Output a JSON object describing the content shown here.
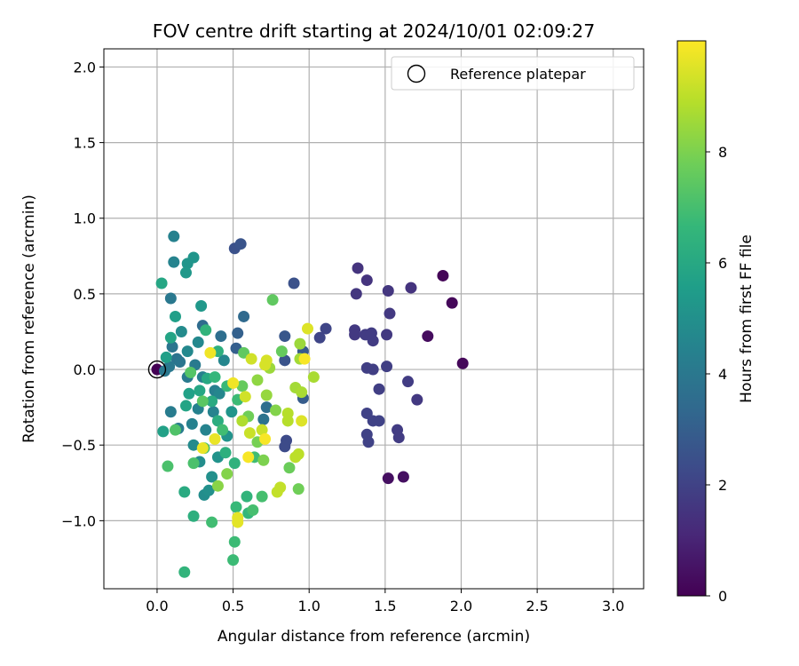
{
  "chart_data": {
    "type": "scatter",
    "title": "FOV centre drift starting at 2024/10/01 02:09:27",
    "xlabel": "Angular distance from reference (arcmin)",
    "ylabel": "Rotation from reference (arcmin)",
    "xlim": [
      -0.35,
      3.2
    ],
    "ylim": [
      -1.45,
      2.12
    ],
    "x_ticks": [
      0.0,
      0.5,
      1.0,
      1.5,
      2.0,
      2.5,
      3.0
    ],
    "x_tick_labels": [
      "0.0",
      "0.5",
      "1.0",
      "1.5",
      "2.0",
      "2.5",
      "3.0"
    ],
    "y_ticks": [
      -1.0,
      -0.5,
      0.0,
      0.5,
      1.0,
      1.5,
      2.0
    ],
    "y_tick_labels": [
      "−1.0",
      "−0.5",
      "0.0",
      "0.5",
      "1.0",
      "1.5",
      "2.0"
    ],
    "grid": true,
    "legend": {
      "placement": "top-right",
      "label": "Reference platepar"
    },
    "reference_point": {
      "x": 0.0,
      "y": 0.0
    },
    "colorbar": {
      "label": "Hours from first FF file",
      "colormap": "viridis",
      "range": [
        0,
        10.0
      ],
      "ticks": [
        0,
        2,
        4,
        6,
        8
      ],
      "tick_labels": [
        "0",
        "2",
        "4",
        "6",
        "8"
      ]
    },
    "series": [
      {
        "colormap_value_key": "h",
        "points": [
          {
            "x": 0.0,
            "y": 0.0,
            "h": 0.0
          },
          {
            "x": 1.88,
            "y": 0.62,
            "h": 0.1
          },
          {
            "x": 1.94,
            "y": 0.44,
            "h": 0.2
          },
          {
            "x": 2.01,
            "y": 0.04,
            "h": 0.2
          },
          {
            "x": 1.78,
            "y": 0.22,
            "h": 0.3
          },
          {
            "x": 1.52,
            "y": -0.72,
            "h": 0.4
          },
          {
            "x": 1.62,
            "y": -0.71,
            "h": 0.4
          },
          {
            "x": 1.32,
            "y": 0.67,
            "h": 1.5
          },
          {
            "x": 1.38,
            "y": 0.59,
            "h": 1.5
          },
          {
            "x": 1.31,
            "y": 0.5,
            "h": 1.6
          },
          {
            "x": 1.52,
            "y": 0.52,
            "h": 1.6
          },
          {
            "x": 1.67,
            "y": 0.54,
            "h": 1.5
          },
          {
            "x": 1.53,
            "y": 0.37,
            "h": 1.7
          },
          {
            "x": 1.3,
            "y": 0.26,
            "h": 1.7
          },
          {
            "x": 1.3,
            "y": 0.23,
            "h": 1.7
          },
          {
            "x": 1.37,
            "y": 0.23,
            "h": 1.8
          },
          {
            "x": 1.41,
            "y": 0.24,
            "h": 1.8
          },
          {
            "x": 1.42,
            "y": 0.19,
            "h": 1.8
          },
          {
            "x": 1.51,
            "y": 0.23,
            "h": 1.7
          },
          {
            "x": 1.38,
            "y": 0.01,
            "h": 1.9
          },
          {
            "x": 1.42,
            "y": 0.0,
            "h": 1.9
          },
          {
            "x": 1.51,
            "y": 0.02,
            "h": 1.9
          },
          {
            "x": 1.65,
            "y": -0.08,
            "h": 1.8
          },
          {
            "x": 1.46,
            "y": -0.13,
            "h": 1.9
          },
          {
            "x": 1.71,
            "y": -0.2,
            "h": 1.7
          },
          {
            "x": 1.38,
            "y": -0.29,
            "h": 2.0
          },
          {
            "x": 1.42,
            "y": -0.34,
            "h": 2.0
          },
          {
            "x": 1.46,
            "y": -0.34,
            "h": 2.0
          },
          {
            "x": 1.58,
            "y": -0.4,
            "h": 1.8
          },
          {
            "x": 1.59,
            "y": -0.45,
            "h": 1.8
          },
          {
            "x": 1.38,
            "y": -0.43,
            "h": 2.0
          },
          {
            "x": 1.39,
            "y": -0.48,
            "h": 2.0
          },
          {
            "x": 1.11,
            "y": 0.27,
            "h": 2.1
          },
          {
            "x": 1.07,
            "y": 0.21,
            "h": 2.1
          },
          {
            "x": 0.85,
            "y": -0.47,
            "h": 2.3
          },
          {
            "x": 0.84,
            "y": -0.51,
            "h": 2.3
          },
          {
            "x": 0.9,
            "y": 0.57,
            "h": 2.5
          },
          {
            "x": 0.51,
            "y": 0.8,
            "h": 2.5
          },
          {
            "x": 0.55,
            "y": 0.83,
            "h": 2.6
          },
          {
            "x": 0.84,
            "y": 0.22,
            "h": 2.7
          },
          {
            "x": 0.84,
            "y": 0.06,
            "h": 2.6
          },
          {
            "x": 0.96,
            "y": 0.12,
            "h": 2.8
          },
          {
            "x": 0.96,
            "y": -0.19,
            "h": 2.9
          },
          {
            "x": 0.52,
            "y": 0.14,
            "h": 3.0
          },
          {
            "x": 0.53,
            "y": 0.24,
            "h": 3.1
          },
          {
            "x": 0.57,
            "y": 0.35,
            "h": 3.4
          },
          {
            "x": 0.3,
            "y": 0.29,
            "h": 3.5
          },
          {
            "x": 0.42,
            "y": 0.22,
            "h": 3.6
          },
          {
            "x": 0.72,
            "y": -0.25,
            "h": 3.6
          },
          {
            "x": 0.7,
            "y": -0.33,
            "h": 3.8
          },
          {
            "x": 0.13,
            "y": 0.07,
            "h": 3.8
          },
          {
            "x": 0.1,
            "y": 0.15,
            "h": 3.9
          },
          {
            "x": 0.15,
            "y": 0.05,
            "h": 3.9
          },
          {
            "x": 0.08,
            "y": 0.02,
            "h": 4.0
          },
          {
            "x": 0.05,
            "y": -0.01,
            "h": 4.0
          },
          {
            "x": 0.2,
            "y": -0.05,
            "h": 4.1
          },
          {
            "x": 0.25,
            "y": 0.03,
            "h": 4.1
          },
          {
            "x": 0.09,
            "y": 0.47,
            "h": 4.0
          },
          {
            "x": 0.09,
            "y": -0.28,
            "h": 4.2
          },
          {
            "x": 0.14,
            "y": -0.39,
            "h": 4.2
          },
          {
            "x": 0.3,
            "y": -0.05,
            "h": 4.3
          },
          {
            "x": 0.38,
            "y": -0.14,
            "h": 4.3
          },
          {
            "x": 0.27,
            "y": -0.26,
            "h": 4.4
          },
          {
            "x": 0.23,
            "y": -0.36,
            "h": 4.4
          },
          {
            "x": 0.32,
            "y": -0.4,
            "h": 4.5
          },
          {
            "x": 0.37,
            "y": -0.28,
            "h": 4.5
          },
          {
            "x": 0.41,
            "y": -0.16,
            "h": 4.6
          },
          {
            "x": 0.44,
            "y": 0.06,
            "h": 4.6
          },
          {
            "x": 0.27,
            "y": 0.18,
            "h": 4.7
          },
          {
            "x": 0.2,
            "y": 0.12,
            "h": 4.7
          },
          {
            "x": 0.16,
            "y": 0.25,
            "h": 4.8
          },
          {
            "x": 0.24,
            "y": -0.5,
            "h": 4.8
          },
          {
            "x": 0.28,
            "y": -0.61,
            "h": 4.9
          },
          {
            "x": 0.31,
            "y": -0.83,
            "h": 4.9
          },
          {
            "x": 0.34,
            "y": -0.8,
            "h": 5.0
          },
          {
            "x": 0.36,
            "y": -0.71,
            "h": 5.0
          },
          {
            "x": 0.4,
            "y": -0.58,
            "h": 5.1
          },
          {
            "x": 0.46,
            "y": -0.44,
            "h": 5.1
          },
          {
            "x": 0.49,
            "y": -0.28,
            "h": 5.2
          },
          {
            "x": 0.2,
            "y": 0.7,
            "h": 5.2
          },
          {
            "x": 0.24,
            "y": 0.74,
            "h": 5.2
          },
          {
            "x": 0.19,
            "y": 0.64,
            "h": 5.3
          },
          {
            "x": 0.11,
            "y": 0.88,
            "h": 4.4
          },
          {
            "x": 0.11,
            "y": 0.71,
            "h": 4.5
          },
          {
            "x": 0.29,
            "y": 0.42,
            "h": 5.3
          },
          {
            "x": 0.03,
            "y": 0.57,
            "h": 5.9
          },
          {
            "x": 0.12,
            "y": 0.35,
            "h": 5.6
          },
          {
            "x": 0.09,
            "y": 0.21,
            "h": 5.8
          },
          {
            "x": 0.06,
            "y": 0.08,
            "h": 5.6
          },
          {
            "x": 0.04,
            "y": -0.41,
            "h": 5.7
          },
          {
            "x": 0.18,
            "y": -0.81,
            "h": 6.1
          },
          {
            "x": 0.24,
            "y": -0.97,
            "h": 6.3
          },
          {
            "x": 0.18,
            "y": -1.34,
            "h": 6.5
          },
          {
            "x": 0.21,
            "y": -0.16,
            "h": 5.7
          },
          {
            "x": 0.19,
            "y": -0.24,
            "h": 5.8
          },
          {
            "x": 0.28,
            "y": -0.14,
            "h": 5.9
          },
          {
            "x": 0.33,
            "y": -0.06,
            "h": 6.0
          },
          {
            "x": 0.36,
            "y": -0.21,
            "h": 6.1
          },
          {
            "x": 0.4,
            "y": -0.34,
            "h": 6.2
          },
          {
            "x": 0.45,
            "y": -0.55,
            "h": 6.3
          },
          {
            "x": 0.51,
            "y": -0.62,
            "h": 6.4
          },
          {
            "x": 0.59,
            "y": -0.84,
            "h": 6.5
          },
          {
            "x": 0.6,
            "y": -0.95,
            "h": 6.6
          },
          {
            "x": 0.52,
            "y": -0.91,
            "h": 6.7
          },
          {
            "x": 0.51,
            "y": -1.14,
            "h": 6.8
          },
          {
            "x": 0.5,
            "y": -1.26,
            "h": 6.8
          },
          {
            "x": 0.36,
            "y": -1.01,
            "h": 6.9
          },
          {
            "x": 0.64,
            "y": -0.58,
            "h": 6.9
          },
          {
            "x": 0.69,
            "y": -0.84,
            "h": 7.0
          },
          {
            "x": 0.63,
            "y": -0.93,
            "h": 7.0
          },
          {
            "x": 0.4,
            "y": 0.12,
            "h": 6.3
          },
          {
            "x": 0.32,
            "y": 0.26,
            "h": 6.5
          },
          {
            "x": 0.38,
            "y": -0.05,
            "h": 6.6
          },
          {
            "x": 0.46,
            "y": -0.11,
            "h": 6.7
          },
          {
            "x": 0.53,
            "y": -0.2,
            "h": 6.8
          },
          {
            "x": 0.43,
            "y": -0.4,
            "h": 6.9
          },
          {
            "x": 0.31,
            "y": -0.52,
            "h": 7.0
          },
          {
            "x": 0.24,
            "y": -0.62,
            "h": 7.1
          },
          {
            "x": 0.07,
            "y": -0.64,
            "h": 7.1
          },
          {
            "x": 0.12,
            "y": -0.4,
            "h": 7.2
          },
          {
            "x": 0.22,
            "y": -0.02,
            "h": 7.3
          },
          {
            "x": 0.3,
            "y": -0.21,
            "h": 7.4
          },
          {
            "x": 0.57,
            "y": 0.11,
            "h": 7.5
          },
          {
            "x": 0.76,
            "y": 0.46,
            "h": 7.5
          },
          {
            "x": 0.82,
            "y": 0.12,
            "h": 7.6
          },
          {
            "x": 0.87,
            "y": -0.65,
            "h": 7.7
          },
          {
            "x": 0.93,
            "y": -0.79,
            "h": 7.8
          },
          {
            "x": 0.56,
            "y": -0.11,
            "h": 7.6
          },
          {
            "x": 0.6,
            "y": -0.31,
            "h": 7.8
          },
          {
            "x": 0.66,
            "y": -0.48,
            "h": 7.9
          },
          {
            "x": 0.7,
            "y": -0.6,
            "h": 8.0
          },
          {
            "x": 0.78,
            "y": -0.27,
            "h": 8.1
          },
          {
            "x": 0.46,
            "y": -0.69,
            "h": 8.1
          },
          {
            "x": 0.4,
            "y": -0.77,
            "h": 8.2
          },
          {
            "x": 0.66,
            "y": -0.07,
            "h": 8.3
          },
          {
            "x": 0.72,
            "y": -0.17,
            "h": 8.4
          },
          {
            "x": 0.74,
            "y": 0.01,
            "h": 8.5
          },
          {
            "x": 0.91,
            "y": -0.12,
            "h": 8.6
          },
          {
            "x": 0.95,
            "y": -0.15,
            "h": 8.7
          },
          {
            "x": 0.94,
            "y": 0.07,
            "h": 8.6
          },
          {
            "x": 0.94,
            "y": 0.17,
            "h": 8.5
          },
          {
            "x": 1.03,
            "y": -0.05,
            "h": 8.7
          },
          {
            "x": 0.56,
            "y": -0.34,
            "h": 8.8
          },
          {
            "x": 0.86,
            "y": -0.34,
            "h": 8.9
          },
          {
            "x": 0.86,
            "y": -0.29,
            "h": 8.9
          },
          {
            "x": 0.93,
            "y": -0.56,
            "h": 9.0
          },
          {
            "x": 0.91,
            "y": -0.58,
            "h": 9.0
          },
          {
            "x": 0.81,
            "y": -0.78,
            "h": 9.1
          },
          {
            "x": 0.79,
            "y": -0.81,
            "h": 9.1
          },
          {
            "x": 0.69,
            "y": -0.4,
            "h": 9.2
          },
          {
            "x": 0.61,
            "y": -0.42,
            "h": 9.2
          },
          {
            "x": 0.58,
            "y": -0.18,
            "h": 9.3
          },
          {
            "x": 0.62,
            "y": 0.07,
            "h": 9.3
          },
          {
            "x": 0.71,
            "y": 0.03,
            "h": 9.4
          },
          {
            "x": 0.72,
            "y": 0.06,
            "h": 9.4
          },
          {
            "x": 0.99,
            "y": 0.27,
            "h": 9.5
          },
          {
            "x": 0.95,
            "y": -0.34,
            "h": 9.5
          },
          {
            "x": 0.53,
            "y": -0.98,
            "h": 9.6
          },
          {
            "x": 0.53,
            "y": -1.01,
            "h": 9.6
          },
          {
            "x": 0.3,
            "y": -0.52,
            "h": 9.7
          },
          {
            "x": 0.38,
            "y": -0.46,
            "h": 9.7
          },
          {
            "x": 0.35,
            "y": 0.11,
            "h": 9.8
          },
          {
            "x": 0.5,
            "y": -0.09,
            "h": 9.8
          },
          {
            "x": 0.6,
            "y": -0.58,
            "h": 9.9
          },
          {
            "x": 0.71,
            "y": -0.46,
            "h": 9.9
          },
          {
            "x": 0.97,
            "y": 0.07,
            "h": 9.9
          }
        ]
      }
    ]
  }
}
